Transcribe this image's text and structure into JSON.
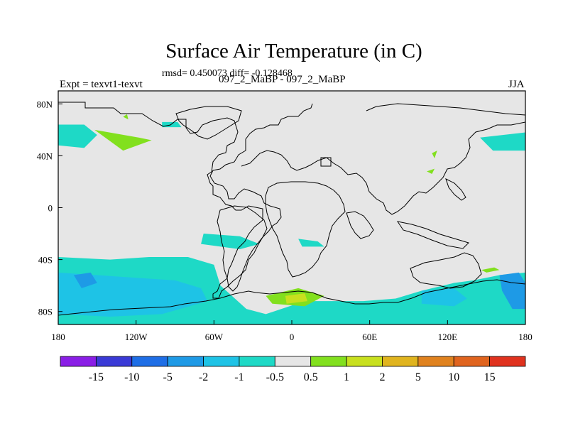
{
  "figure": {
    "title": "Surface Air Temperature (in C)",
    "stats": "rmsd= 0.450073 diff= -0.128468",
    "left_label": "Expt = texvt1-texvt",
    "center_label": "097_2_MaBP - 097_2_MaBP",
    "right_label": "JJA"
  },
  "chart_data": {
    "type": "heatmap",
    "subtype": "filled-contour map",
    "title": "Surface Air Temperature (in C)",
    "x_ticks": [
      {
        "value": -180,
        "label": "180"
      },
      {
        "value": -120,
        "label": "120W"
      },
      {
        "value": -60,
        "label": "60W"
      },
      {
        "value": 0,
        "label": "0"
      },
      {
        "value": 60,
        "label": "60E"
      },
      {
        "value": 120,
        "label": "120E"
      },
      {
        "value": 180,
        "label": "180"
      }
    ],
    "y_ticks": [
      {
        "value": 80,
        "label": "80N"
      },
      {
        "value": 40,
        "label": "40N"
      },
      {
        "value": 0,
        "label": "0"
      },
      {
        "value": -40,
        "label": "40S"
      },
      {
        "value": -80,
        "label": "80S"
      }
    ],
    "xlim": [
      -180,
      180
    ],
    "ylim": [
      -90,
      90
    ],
    "colorbar": {
      "levels": [
        "-15",
        "-10",
        "-5",
        "-2",
        "-1",
        "-0.5",
        "0.5",
        "1",
        "2",
        "5",
        "10",
        "15"
      ],
      "colors": [
        "#8a1ee6",
        "#3a3ad6",
        "#1e6ee6",
        "#1e9ae6",
        "#1ec3e6",
        "#1ed9c6",
        "#e6e6e6",
        "#82e01e",
        "#c8e01e",
        "#e0b41e",
        "#e0821e",
        "#e0641e",
        "#e0321e"
      ]
    },
    "background_color": "#e6e6e6",
    "regions": [
      {
        "name": "cyan-southern-band",
        "color": "#1ed9c6",
        "polygon": [
          [
            -180,
            -38
          ],
          [
            -140,
            -40
          ],
          [
            -110,
            -38
          ],
          [
            -80,
            -38
          ],
          [
            -60,
            -44
          ],
          [
            -55,
            -60
          ],
          [
            -35,
            -78
          ],
          [
            -20,
            -82
          ],
          [
            10,
            -72
          ],
          [
            30,
            -72
          ],
          [
            55,
            -72
          ],
          [
            80,
            -70
          ],
          [
            100,
            -64
          ],
          [
            125,
            -58
          ],
          [
            140,
            -56
          ],
          [
            160,
            -52
          ],
          [
            180,
            -50
          ],
          [
            180,
            -90
          ],
          [
            -180,
            -90
          ]
        ]
      },
      {
        "name": "blue-southern-pacific",
        "color": "#1ec3e6",
        "polygon": [
          [
            -180,
            -50
          ],
          [
            -150,
            -52
          ],
          [
            -120,
            -54
          ],
          [
            -90,
            -56
          ],
          [
            -70,
            -62
          ],
          [
            -65,
            -72
          ],
          [
            -100,
            -82
          ],
          [
            -140,
            -84
          ],
          [
            -180,
            -82
          ]
        ]
      },
      {
        "name": "deep-blue-south-1",
        "color": "#1e9ae6",
        "polygon": [
          [
            -168,
            -52
          ],
          [
            -155,
            -50
          ],
          [
            -150,
            -58
          ],
          [
            -162,
            -62
          ]
        ]
      },
      {
        "name": "deep-blue-south-2",
        "color": "#1e9ae6",
        "polygon": [
          [
            160,
            -52
          ],
          [
            175,
            -50
          ],
          [
            180,
            -58
          ],
          [
            180,
            -78
          ],
          [
            170,
            -78
          ],
          [
            162,
            -64
          ]
        ]
      },
      {
        "name": "blue-south-indian",
        "color": "#1ec3e6",
        "polygon": [
          [
            100,
            -64
          ],
          [
            125,
            -62
          ],
          [
            135,
            -70
          ],
          [
            125,
            -76
          ],
          [
            100,
            -74
          ]
        ]
      },
      {
        "name": "cyan-south-atlantic",
        "color": "#1ed9c6",
        "polygon": [
          [
            -68,
            -20
          ],
          [
            -40,
            -22
          ],
          [
            -25,
            -28
          ],
          [
            -40,
            -32
          ],
          [
            -70,
            -28
          ]
        ]
      },
      {
        "name": "cyan-south-indian-patch",
        "color": "#1ed9c6",
        "polygon": [
          [
            5,
            -24
          ],
          [
            20,
            -26
          ],
          [
            25,
            -30
          ],
          [
            8,
            -30
          ]
        ]
      },
      {
        "name": "cyan-north-pacific",
        "color": "#1ed9c6",
        "polygon": [
          [
            -180,
            64
          ],
          [
            -160,
            64
          ],
          [
            -150,
            56
          ],
          [
            -160,
            46
          ],
          [
            -180,
            48
          ]
        ]
      },
      {
        "name": "cyan-north-pacific-east",
        "color": "#1ed9c6",
        "polygon": [
          [
            145,
            54
          ],
          [
            180,
            58
          ],
          [
            180,
            44
          ],
          [
            155,
            44
          ]
        ]
      },
      {
        "name": "cyan-baffin",
        "color": "#1ed9c6",
        "polygon": [
          [
            -100,
            66
          ],
          [
            -88,
            66
          ],
          [
            -85,
            62
          ],
          [
            -100,
            62
          ]
        ]
      },
      {
        "name": "green-alaska",
        "color": "#82e01e",
        "polygon": [
          [
            -152,
            60
          ],
          [
            -118,
            54
          ],
          [
            -108,
            52
          ],
          [
            -130,
            44
          ]
        ]
      },
      {
        "name": "green-east-asia-1",
        "color": "#82e01e",
        "polygon": [
          [
            108,
            42
          ],
          [
            112,
            44
          ],
          [
            110,
            38
          ]
        ]
      },
      {
        "name": "green-east-asia-2",
        "color": "#82e01e",
        "polygon": [
          [
            104,
            28
          ],
          [
            110,
            30
          ],
          [
            108,
            26
          ]
        ]
      },
      {
        "name": "green-antarctic-coast",
        "color": "#82e01e",
        "polygon": [
          [
            -20,
            -68
          ],
          [
            5,
            -62
          ],
          [
            25,
            -68
          ],
          [
            10,
            -76
          ],
          [
            -15,
            -74
          ]
        ]
      },
      {
        "name": "yellow-antarctic-coast",
        "color": "#c8e01e",
        "polygon": [
          [
            -5,
            -68
          ],
          [
            10,
            -66
          ],
          [
            12,
            -72
          ],
          [
            -4,
            -74
          ]
        ]
      },
      {
        "name": "green-southeast",
        "color": "#82e01e",
        "polygon": [
          [
            146,
            -48
          ],
          [
            156,
            -46
          ],
          [
            160,
            -48
          ],
          [
            150,
            -50
          ]
        ]
      },
      {
        "name": "green-arctic-dot",
        "color": "#82e01e",
        "polygon": [
          [
            -130,
            70
          ],
          [
            -127,
            72
          ],
          [
            -126,
            68
          ]
        ]
      }
    ]
  }
}
